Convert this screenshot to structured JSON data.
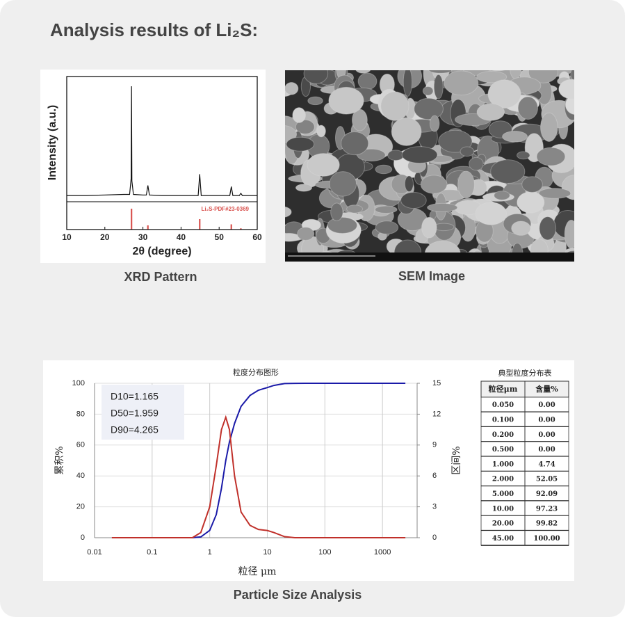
{
  "header": {
    "title": "Analysis results of Li₂S:"
  },
  "captions": [
    "XRD Pattern",
    "SEM Image",
    "Particle Size Analysis"
  ],
  "chart_data": [
    {
      "type": "line",
      "xlabel": "2θ (degree)",
      "ylabel": "Intensity (a.u.)",
      "xlim": [
        10,
        60
      ],
      "xticks": [
        10,
        20,
        30,
        40,
        50,
        60
      ],
      "ylim": [
        0,
        100
      ],
      "x": [
        10,
        15,
        20,
        25,
        26.5,
        26.9,
        27.0,
        27.1,
        27.5,
        30,
        30.9,
        31.3,
        31.7,
        35,
        40,
        44.5,
        44.9,
        45.3,
        50,
        52.8,
        53.2,
        53.6,
        55.3,
        55.7,
        56.1,
        60
      ],
      "series": [
        {
          "color": "#111111",
          "values": [
            3,
            3,
            3.5,
            4,
            4,
            18,
            100,
            16,
            4,
            3.5,
            3.5,
            12,
            3.5,
            3,
            3,
            3,
            22,
            3,
            3,
            3,
            11,
            3,
            3,
            5,
            3,
            3
          ]
        }
      ],
      "reference": {
        "name": "Li₂S-PDF#23-0369",
        "color": "#d9534f",
        "x": [
          27.0,
          31.3,
          44.9,
          53.2,
          55.7
        ],
        "values": [
          100,
          20,
          50,
          25,
          6
        ]
      }
    },
    {
      "type": "line",
      "title": "粒度分布图形",
      "xlabel": "粒径 μm",
      "ylabel": "累积%",
      "y2label": "区间%",
      "xscale": "log",
      "grid": true,
      "xlim": [
        0.01,
        4000
      ],
      "xticks": [
        0.01,
        0.1,
        1,
        10,
        100,
        1000
      ],
      "ylim": [
        0,
        100
      ],
      "yticks": [
        0,
        20,
        40,
        60,
        80,
        100
      ],
      "y2lim": [
        0,
        15
      ],
      "y2ticks": [
        0,
        3,
        6,
        9,
        12,
        15
      ],
      "annotations": [
        "D10=1.165",
        "D50=1.959",
        "D90=4.265"
      ],
      "x": [
        0.02,
        0.5,
        0.7,
        1,
        1.3,
        1.6,
        1.9,
        2.2,
        2.7,
        3.5,
        5,
        7,
        10,
        13,
        20,
        30,
        45,
        2500
      ],
      "series": [
        {
          "color": "#1a1aa8",
          "values": [
            0,
            0,
            0.5,
            4.74,
            15,
            32,
            50,
            62,
            74,
            85,
            92.09,
            95.5,
            97.23,
            98.6,
            99.82,
            99.95,
            100,
            100
          ]
        },
        {
          "color": "#c0302a",
          "axis": "y2",
          "values": [
            0,
            0,
            0.5,
            3,
            7,
            10.5,
            11.7,
            10.5,
            6,
            2.5,
            1.2,
            0.8,
            0.7,
            0.5,
            0.1,
            0,
            0,
            0
          ]
        }
      ]
    }
  ],
  "table": {
    "title": "典型粒度分布表",
    "columns": [
      "粒径μm",
      "含量%"
    ],
    "rows": [
      [
        "0.050",
        "0.00"
      ],
      [
        "0.100",
        "0.00"
      ],
      [
        "0.200",
        "0.00"
      ],
      [
        "0.500",
        "0.00"
      ],
      [
        "1.000",
        "4.74"
      ],
      [
        "2.000",
        "52.05"
      ],
      [
        "5.000",
        "92.09"
      ],
      [
        "10.00",
        "97.23"
      ],
      [
        "20.00",
        "99.82"
      ],
      [
        "45.00",
        "100.00"
      ]
    ]
  }
}
